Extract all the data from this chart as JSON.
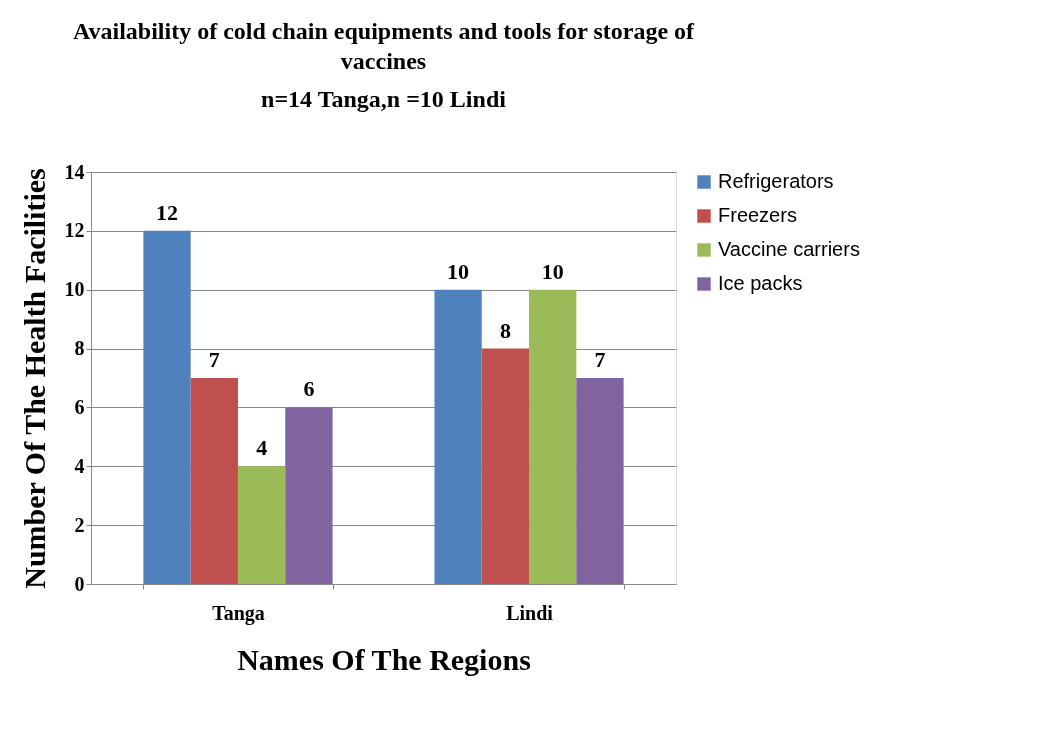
{
  "chart_data": {
    "type": "bar",
    "title": "Availability of cold chain equipments and tools for storage of vaccines",
    "subtitle": "n=14  Tanga,n =10 Lindi",
    "xlabel": "Names Of The Regions",
    "ylabel": "Number Of The Health Facilities",
    "categories": [
      "Tanga",
      "Lindi"
    ],
    "series": [
      {
        "name": "Refrigerators",
        "color": "#4f81bd",
        "values": [
          12,
          10
        ]
      },
      {
        "name": "Freezers",
        "color": "#c0504d",
        "values": [
          7,
          8
        ]
      },
      {
        "name": "Vaccine carriers",
        "color": "#9bbb59",
        "values": [
          4,
          10
        ]
      },
      {
        "name": "Ice packs",
        "color": "#8064a2",
        "values": [
          6,
          7
        ]
      }
    ],
    "ylim": [
      0,
      14
    ],
    "yticks": [
      0,
      2,
      4,
      6,
      8,
      10,
      12,
      14
    ],
    "grid": "y",
    "legend": "right",
    "data_labels": true
  }
}
